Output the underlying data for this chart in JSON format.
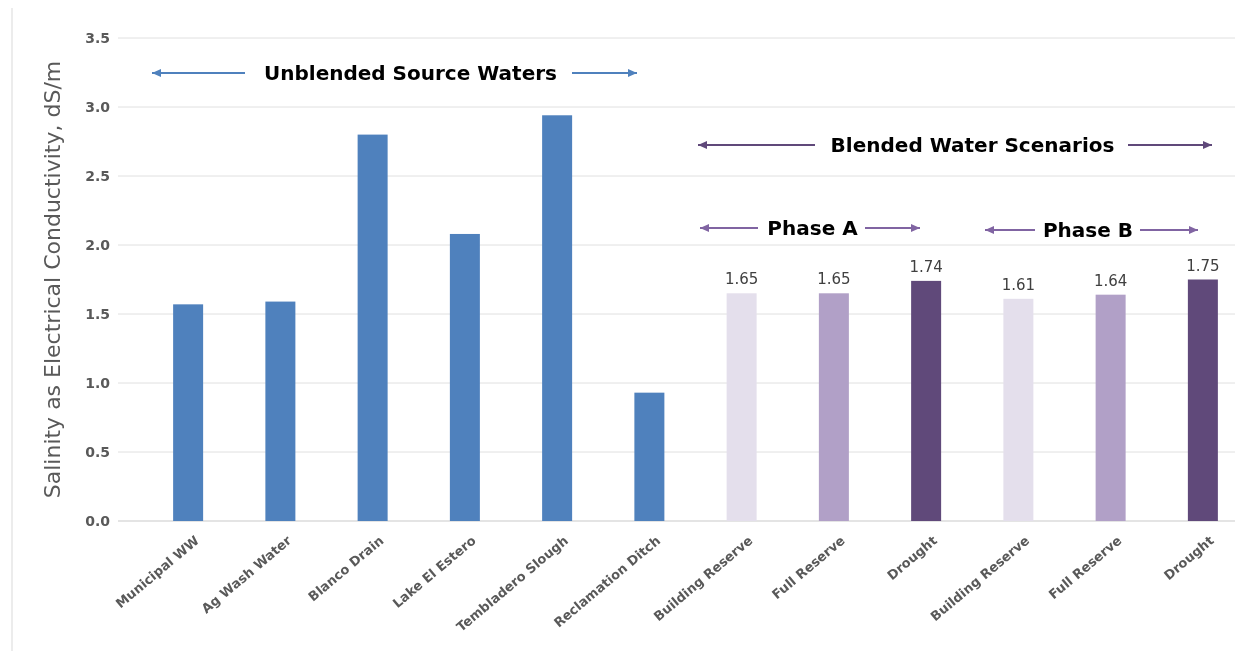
{
  "chart_data": {
    "type": "bar",
    "ylabel": "Salinity as Electrical Conductivity, dS/m",
    "categories": [
      "Municipal WW",
      "Ag Wash Water",
      "Blanco Drain",
      "Lake El Estero",
      "Tembladero Slough",
      "Reclamation Ditch",
      "Building Reserve",
      "Full Reserve",
      "Drought",
      "Building Reserve",
      "Full Reserve",
      "Drought"
    ],
    "values": [
      1.57,
      1.59,
      2.8,
      2.08,
      2.94,
      0.93,
      1.65,
      1.65,
      1.74,
      1.61,
      1.64,
      1.75
    ],
    "value_labels": [
      null,
      null,
      null,
      null,
      null,
      null,
      "1.65",
      "1.65",
      "1.74",
      "1.61",
      "1.64",
      "1.75"
    ],
    "colors": [
      "#4f81bd",
      "#4f81bd",
      "#4f81bd",
      "#4f81bd",
      "#4f81bd",
      "#4f81bd",
      "#e4dfec",
      "#b1a0c7",
      "#60497a",
      "#e4dfec",
      "#b1a0c7",
      "#60497a"
    ],
    "ylim": [
      0,
      3.5
    ],
    "yticks": [
      {
        "value": 0,
        "label": "0.0"
      },
      {
        "value": 0.5,
        "label": "0.5"
      },
      {
        "value": 1,
        "label": "1.0"
      },
      {
        "value": 1.5,
        "label": "1.5"
      },
      {
        "value": 2,
        "label": "2.0"
      },
      {
        "value": 2.5,
        "label": "2.5"
      },
      {
        "value": 3,
        "label": "3.0"
      },
      {
        "value": 3.5,
        "label": "3.5"
      }
    ],
    "grid": "y",
    "annotations": [
      "Unblended Source Waters",
      "Blended Water Scenarios",
      "Phase A",
      "Phase B"
    ]
  }
}
